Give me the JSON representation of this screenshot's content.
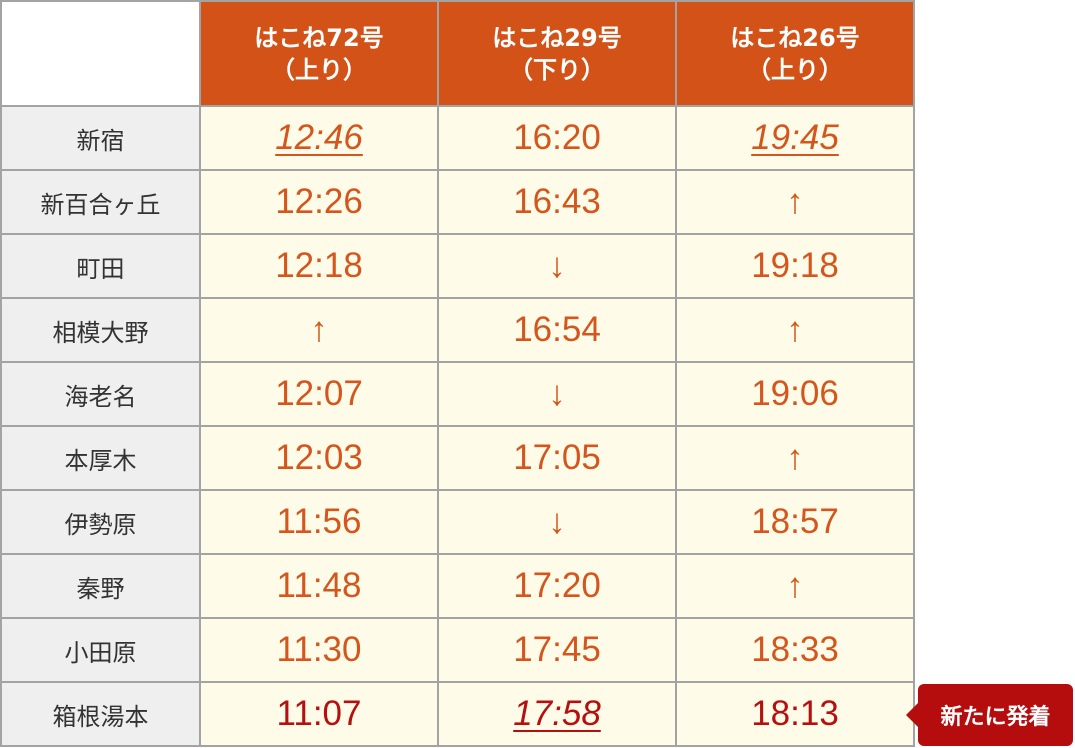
{
  "header": {
    "columns": [
      {
        "name": "はこね72号",
        "direction": "（上り）"
      },
      {
        "name": "はこね29号",
        "direction": "（下り）"
      },
      {
        "name": "はこね26号",
        "direction": "（上り）"
      }
    ]
  },
  "rows": [
    {
      "station": "新宿",
      "times": [
        "12:46",
        "16:20",
        "19:45"
      ],
      "styles": [
        "link",
        "",
        "link"
      ]
    },
    {
      "station": "新百合ヶ丘",
      "times": [
        "12:26",
        "16:43",
        "↑"
      ],
      "styles": [
        "",
        "",
        ""
      ]
    },
    {
      "station": "町田",
      "times": [
        "12:18",
        "↓",
        "19:18"
      ],
      "styles": [
        "",
        "",
        ""
      ]
    },
    {
      "station": "相模大野",
      "times": [
        "↑",
        "16:54",
        "↑"
      ],
      "styles": [
        "",
        "",
        ""
      ]
    },
    {
      "station": "海老名",
      "times": [
        "12:07",
        "↓",
        "19:06"
      ],
      "styles": [
        "",
        "",
        ""
      ]
    },
    {
      "station": "本厚木",
      "times": [
        "12:03",
        "17:05",
        "↑"
      ],
      "styles": [
        "",
        "",
        ""
      ]
    },
    {
      "station": "伊勢原",
      "times": [
        "11:56",
        "↓",
        "18:57"
      ],
      "styles": [
        "",
        "",
        ""
      ]
    },
    {
      "station": "秦野",
      "times": [
        "11:48",
        "17:20",
        "↑"
      ],
      "styles": [
        "",
        "",
        ""
      ]
    },
    {
      "station": "小田原",
      "times": [
        "11:30",
        "17:45",
        "18:33"
      ],
      "styles": [
        "",
        "",
        ""
      ]
    },
    {
      "station": "箱根湯本",
      "times": [
        "11:07",
        "17:58",
        "18:13"
      ],
      "styles": [
        "red",
        "red link",
        "red"
      ]
    }
  ],
  "badge": {
    "label": "新たに発着"
  },
  "colors": {
    "header": "#d35218",
    "time": "#d4561c",
    "highlight": "#b5100f",
    "cell": "#fefbe8",
    "station": "#efefef"
  }
}
